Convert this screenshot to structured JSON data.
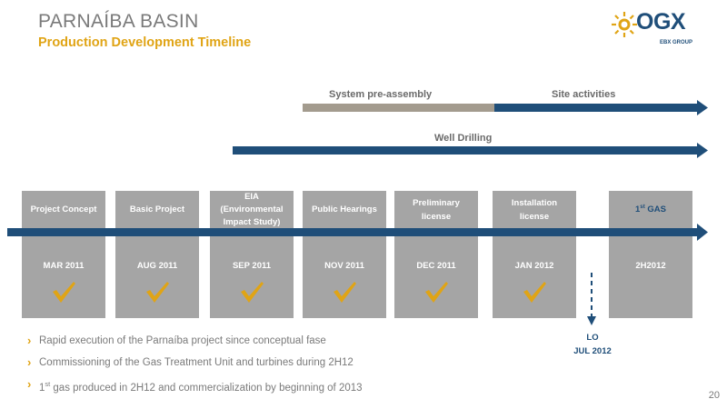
{
  "header": {
    "title": "PARNAÍBA BASIN",
    "subtitle": "Production Development Timeline"
  },
  "logo": {
    "brand": "OGX",
    "group": "EBX GROUP"
  },
  "bars": {
    "pre_assembly": "System pre-assembly",
    "site_activities": "Site activities",
    "well_drilling": "Well Drilling"
  },
  "milestones": [
    {
      "label_lines": [
        "Project Concept"
      ],
      "date": "MAR 2011",
      "done": true
    },
    {
      "label_lines": [
        "Basic Project"
      ],
      "date": "AUG 2011",
      "done": true
    },
    {
      "label_lines": [
        "EIA",
        "(Environmental",
        "Impact Study)"
      ],
      "date": "SEP 2011",
      "done": true
    },
    {
      "label_lines": [
        "Public Hearings"
      ],
      "date": "NOV 2011",
      "done": true
    },
    {
      "label_lines": [
        "Preliminary",
        "license"
      ],
      "date": "DEC 2011",
      "done": true
    },
    {
      "label_lines": [
        "Installation",
        "license"
      ],
      "date": "JAN 2012",
      "done": true
    },
    {
      "label_lines": [
        "1st GAS"
      ],
      "date": "2H2012",
      "done": false
    }
  ],
  "lo_marker": {
    "label": "LO",
    "date": "JUL 2012"
  },
  "bullets": [
    "Rapid execution of the Parnaíba project since conceptual fase",
    "Commissioning of the Gas Treatment Unit and turbines during 2H12",
    "1st gas produced in 2H12 and commercialization by beginning of 2013"
  ],
  "page_number": "20",
  "colors": {
    "navy": "#1f4e79",
    "gold": "#e0a415",
    "gray_box": "#a5a5a5",
    "taupe": "#a39b8e"
  }
}
